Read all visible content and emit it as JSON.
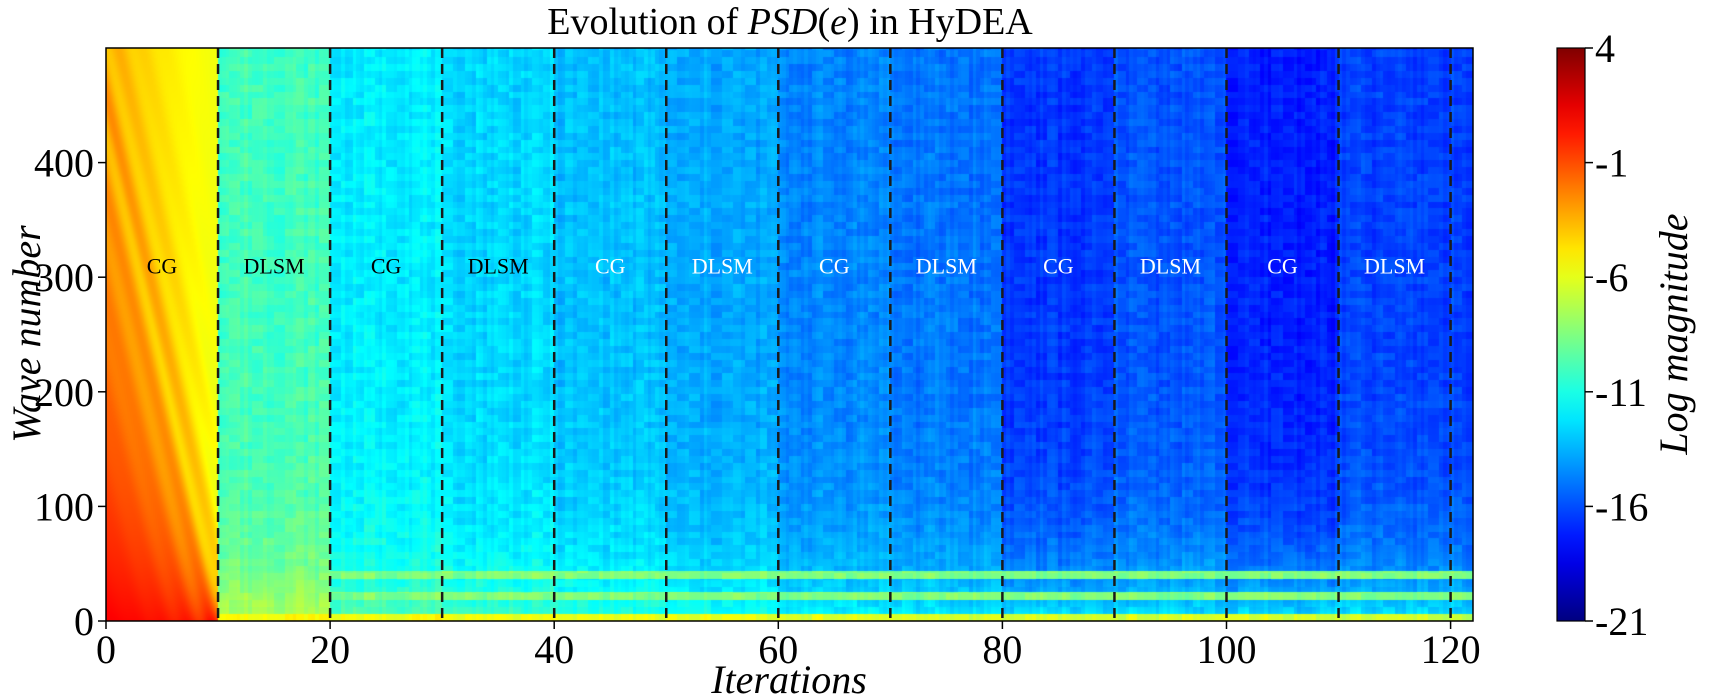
{
  "chart_data": {
    "type": "heatmap",
    "title_prefix": "Evolution of ",
    "title_italic": "PSD",
    "title_paren_open": "(",
    "title_var": "e",
    "title_paren_close": ")",
    "title_suffix": " in HyDEA",
    "xlabel": "Iterations",
    "ylabel": "Wave number",
    "xlim": [
      0,
      122
    ],
    "ylim": [
      0,
      500
    ],
    "xticks": [
      "0",
      "20",
      "40",
      "60",
      "80",
      "100",
      "120"
    ],
    "xtick_values": [
      0,
      20,
      40,
      60,
      80,
      100,
      120
    ],
    "yticks": [
      "0",
      "100",
      "200",
      "300",
      "400"
    ],
    "ytick_values": [
      0,
      100,
      200,
      300,
      400
    ],
    "colorbar": {
      "label": "Log magnitude",
      "range": [
        -21,
        4
      ],
      "ticks": [
        "4",
        "-1",
        "-6",
        "-11",
        "-16",
        "-21"
      ],
      "tick_values": [
        4,
        -1,
        -6,
        -11,
        -16,
        -21
      ],
      "colormap": "jet"
    },
    "phase_boundaries": [
      10,
      20,
      30,
      40,
      50,
      60,
      70,
      80,
      90,
      100,
      110,
      120
    ],
    "phase_label_y": 310,
    "phases": [
      {
        "label": "CG",
        "start": 0,
        "end": 10,
        "label_color": "#000000"
      },
      {
        "label": "DLSM",
        "start": 10,
        "end": 20,
        "label_color": "#000000"
      },
      {
        "label": "CG",
        "start": 20,
        "end": 30,
        "label_color": "#000000"
      },
      {
        "label": "DLSM",
        "start": 30,
        "end": 40,
        "label_color": "#000000"
      },
      {
        "label": "CG",
        "start": 40,
        "end": 50,
        "label_color": "#ffffff"
      },
      {
        "label": "DLSM",
        "start": 50,
        "end": 60,
        "label_color": "#ffffff"
      },
      {
        "label": "CG",
        "start": 60,
        "end": 70,
        "label_color": "#ffffff"
      },
      {
        "label": "DLSM",
        "start": 70,
        "end": 80,
        "label_color": "#ffffff"
      },
      {
        "label": "CG",
        "start": 80,
        "end": 90,
        "label_color": "#ffffff"
      },
      {
        "label": "DLSM",
        "start": 90,
        "end": 100,
        "label_color": "#ffffff"
      },
      {
        "label": "CG",
        "start": 100,
        "end": 110,
        "label_color": "#ffffff"
      },
      {
        "label": "DLSM",
        "start": 110,
        "end": 120,
        "label_color": "#ffffff"
      }
    ],
    "phase_base_levels": [
      {
        "start": 0,
        "end": 10,
        "high_k": -4.5,
        "low_k": 1.0
      },
      {
        "start": 10,
        "end": 20,
        "high_k": -10.0,
        "low_k": -7.0
      },
      {
        "start": 20,
        "end": 30,
        "high_k": -12.0,
        "low_k": -9.5
      },
      {
        "start": 30,
        "end": 40,
        "high_k": -12.6,
        "low_k": -10.0
      },
      {
        "start": 40,
        "end": 50,
        "high_k": -13.2,
        "low_k": -10.5
      },
      {
        "start": 50,
        "end": 60,
        "high_k": -13.8,
        "low_k": -11.0
      },
      {
        "start": 60,
        "end": 70,
        "high_k": -14.6,
        "low_k": -11.5
      },
      {
        "start": 70,
        "end": 80,
        "high_k": -15.0,
        "low_k": -11.8
      },
      {
        "start": 80,
        "end": 90,
        "high_k": -16.6,
        "low_k": -12.0
      },
      {
        "start": 90,
        "end": 100,
        "high_k": -15.8,
        "low_k": -12.0
      },
      {
        "start": 100,
        "end": 110,
        "high_k": -17.2,
        "low_k": -12.0
      },
      {
        "start": 110,
        "end": 122,
        "high_k": -16.3,
        "low_k": -12.0
      }
    ],
    "bright_bands_wave_number": [
      22,
      40
    ],
    "boundary_line_color": "#1a1a1a",
    "grid": false
  }
}
